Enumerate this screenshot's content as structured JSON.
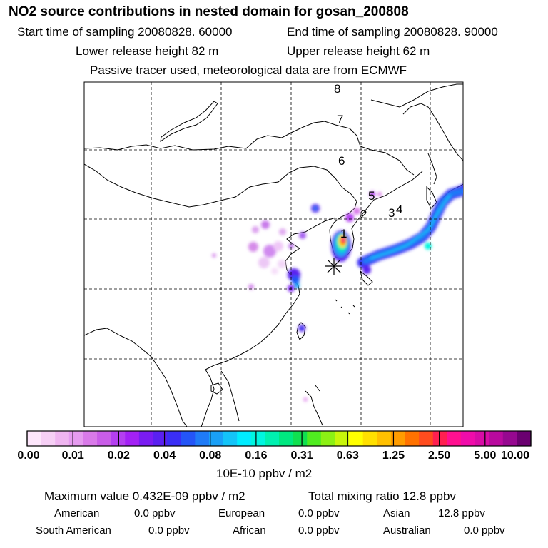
{
  "header": {
    "title": "NO2 source contributions in nested domain for gosan_200808",
    "start_label": "Start time of sampling 20080828. 60000",
    "end_label": "End time of sampling 20080828. 90000",
    "lower_label": "Lower release height   82 m",
    "upper_label": "Upper release height   62 m",
    "tracer_note": "Passive tracer used, meteorological data are from ECMWF"
  },
  "map": {
    "trajectory_labels": [
      "1",
      "2",
      "3",
      "4",
      "5",
      "6",
      "7",
      "8"
    ],
    "receptor_marker": "asterisk-star-icon"
  },
  "colorbar": {
    "tick_labels": [
      "0.00",
      "0.01",
      "0.02",
      "0.04",
      "0.08",
      "0.16",
      "0.31",
      "0.63",
      "1.25",
      "2.50",
      "5.00",
      "10.00"
    ],
    "unit_label": "10E-10 ppbv / m2",
    "colors": [
      "#fde6fb",
      "#f6cff5",
      "#efb5f0",
      "#e59bef",
      "#d97ae9",
      "#c95de8",
      "#b43ff0",
      "#a321f5",
      "#7a1cf2",
      "#5a20f0",
      "#3a2ef5",
      "#2455f7",
      "#1f7bf7",
      "#1aa0f7",
      "#14c4f8",
      "#00ecff",
      "#00f5e0",
      "#00f0b0",
      "#00e880",
      "#10e050",
      "#50ec20",
      "#8cf014",
      "#c8f50a",
      "#ffff00",
      "#ffe000",
      "#ffc000",
      "#ff9c00",
      "#ff7200",
      "#ff4c1e",
      "#ff2050",
      "#ff1090",
      "#f00caa",
      "#d80ca6",
      "#b80a9e",
      "#960890",
      "#6a0070"
    ]
  },
  "summary": {
    "max_line": "Maximum value  0.432E-09 ppbv / m2",
    "total_line": "Total mixing ratio      12.8 ppbv",
    "regions": [
      {
        "name": "American",
        "value": "0.0 ppbv"
      },
      {
        "name": "European",
        "value": "0.0 ppbv"
      },
      {
        "name": "Asian",
        "value": "12.8 ppbv"
      },
      {
        "name": "South American",
        "value": "0.0 ppbv"
      },
      {
        "name": "African",
        "value": "0.0 ppbv"
      },
      {
        "name": "Australian",
        "value": "0.0 ppbv"
      }
    ]
  }
}
